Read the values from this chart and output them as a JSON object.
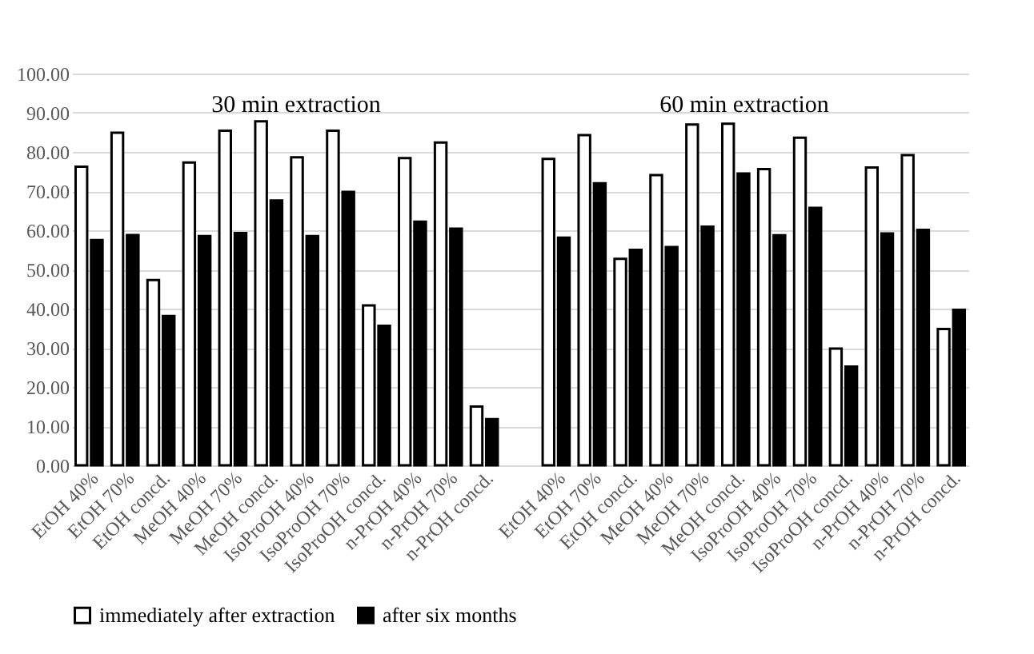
{
  "chart_data": {
    "type": "bar",
    "categories": [
      "EtOH 40%",
      "EtOH 70%",
      "EtOH concd.",
      "MeOH 40%",
      "MeOH 70%",
      "MeOH concd.",
      "IsoProOH 40%",
      "IsoProOH 70%",
      "IsoProOH concd.",
      "n-PrOH 40%",
      "n-PrOH 70%",
      "n-PrOH concd.",
      null,
      "EtOH 40%",
      "EtOH 70%",
      "EtOH concd.",
      "MeOH 40%",
      "MeOH 70%",
      "MeOH concd.",
      "IsoProOH 40%",
      "IsoProOH 70%",
      "IsoProOH concd.",
      "n-PrOH 40%",
      "n-PrOH 70%",
      "n-PrOH concd."
    ],
    "series": [
      {
        "name": "immediately after extraction",
        "color": "#ffffff",
        "values": [
          76.2,
          84.9,
          47.3,
          77.3,
          85.4,
          87.8,
          78.6,
          85.4,
          40.8,
          78.4,
          82.4,
          15.0,
          null,
          78.2,
          84.3,
          52.7,
          74.1,
          87.0,
          87.2,
          75.6,
          83.6,
          29.8,
          76.0,
          79.2,
          34.8
        ]
      },
      {
        "name": "after six months",
        "color": "#000000",
        "values": [
          57.5,
          58.8,
          38.1,
          58.5,
          59.3,
          67.6,
          58.5,
          69.8,
          35.6,
          62.2,
          60.4,
          11.8,
          null,
          58.1,
          72.0,
          55.0,
          55.7,
          60.9,
          74.5,
          58.7,
          65.7,
          25.2,
          59.2,
          60.1,
          39.7
        ]
      }
    ],
    "ylim": [
      0,
      100
    ],
    "yticks": [
      {
        "value": 0,
        "label": "0.00"
      },
      {
        "value": 10,
        "label": "10.00"
      },
      {
        "value": 20,
        "label": "20.00"
      },
      {
        "value": 30,
        "label": "30.00"
      },
      {
        "value": 40,
        "label": "40.00"
      },
      {
        "value": 50,
        "label": "50.00"
      },
      {
        "value": 60,
        "label": "60.00"
      },
      {
        "value": 70,
        "label": "70.00"
      },
      {
        "value": 80,
        "label": "80.00"
      },
      {
        "value": 90,
        "label": "90.00"
      },
      {
        "value": 100,
        "label": "100.00"
      }
    ],
    "grid": "y",
    "legend": "bottom",
    "annotations": [
      "30 min extraction",
      "60 min extraction"
    ]
  }
}
